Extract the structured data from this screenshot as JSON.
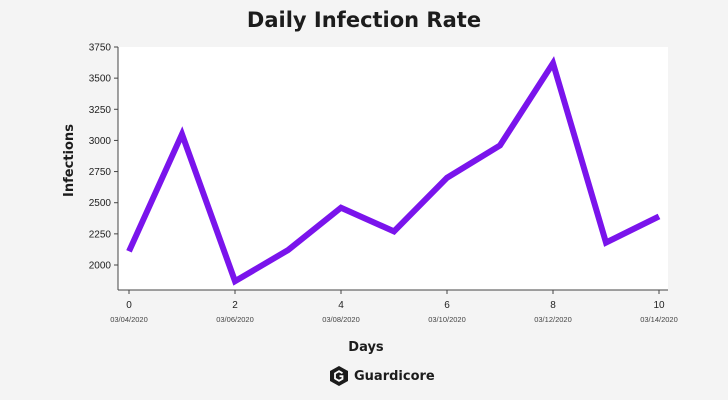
{
  "chart_data": {
    "type": "line",
    "title": "Daily Infection Rate",
    "xlabel": "Days",
    "ylabel": "Infections",
    "x": [
      0,
      1,
      2,
      3,
      4,
      5,
      6,
      7,
      8,
      9,
      10
    ],
    "series": [
      {
        "values": [
          2110,
          3050,
          1870,
          2120,
          2460,
          2270,
          2700,
          2960,
          3620,
          2180,
          2390
        ]
      }
    ],
    "xlim": [
      0,
      10
    ],
    "ylim": [
      1850,
      3750
    ],
    "x_ticks": [
      0,
      2,
      4,
      6,
      8,
      10
    ],
    "x_tick_dates": [
      "03/04/2020",
      "03/06/2020",
      "03/08/2020",
      "03/10/2020",
      "03/12/2020",
      "03/14/2020"
    ],
    "y_ticks": [
      2000,
      2250,
      2500,
      2750,
      3000,
      3250,
      3500,
      3750
    ],
    "line_color": "#7a14ec",
    "grid": false
  },
  "brand": {
    "name": "Guardicore",
    "icon": "guardicore-logo-icon"
  }
}
